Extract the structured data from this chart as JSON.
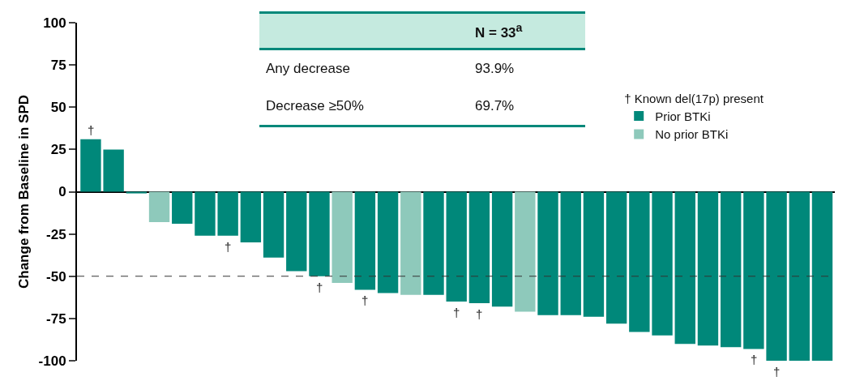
{
  "chart_data": {
    "type": "bar",
    "ylabel": "Change from Baseline in SPD",
    "legend_title": "† Known del(17p) present",
    "legend": "top right",
    "grid": false,
    "categories": [
      null,
      null,
      null,
      null,
      null,
      null,
      null,
      null,
      null,
      null,
      null,
      null,
      null,
      null,
      null,
      null,
      null,
      null,
      null,
      null,
      null,
      null,
      null,
      null,
      null,
      null,
      null,
      null,
      null,
      null,
      null,
      null,
      null
    ],
    "series": [
      {
        "name": "Prior BTKi",
        "color": "#00887a",
        "values": [
          31,
          25,
          -1,
          null,
          -19,
          -26,
          -26,
          -30,
          -39,
          -47,
          -50,
          null,
          -58,
          -60,
          null,
          -61,
          -65,
          -66,
          -68,
          null,
          -73,
          -73,
          -74,
          -78,
          -83,
          -85,
          -90,
          -91,
          -92,
          -93,
          -100,
          -100,
          -100
        ],
        "value_labels": [
          "†",
          null,
          null,
          null,
          null,
          null,
          "†",
          null,
          null,
          null,
          "†",
          null,
          "†",
          null,
          null,
          null,
          "†",
          "†",
          null,
          null,
          null,
          null,
          null,
          null,
          null,
          null,
          null,
          null,
          null,
          "†",
          "†",
          null,
          null
        ]
      },
      {
        "name": "No prior BTKi",
        "color": "#8ec9bb",
        "values": [
          null,
          null,
          null,
          -18,
          null,
          null,
          null,
          null,
          null,
          null,
          null,
          -54,
          null,
          null,
          -61,
          null,
          null,
          null,
          null,
          -71,
          null,
          null,
          null,
          null,
          null,
          null,
          null,
          null,
          null,
          null,
          null,
          null,
          null
        ]
      }
    ],
    "ylim": [
      -100,
      100
    ],
    "yticks": [
      100,
      75,
      50,
      25,
      0,
      -25,
      -50,
      -75,
      -100
    ],
    "ref_lines": [
      {
        "axis": "y",
        "value": -50,
        "line_style": "dashed",
        "color": "#333333"
      }
    ],
    "annotations": [
      "N = 33$^{a}$",
      "Any decrease",
      "93.9%",
      "Decrease ≥50%",
      "69.7%"
    ]
  }
}
